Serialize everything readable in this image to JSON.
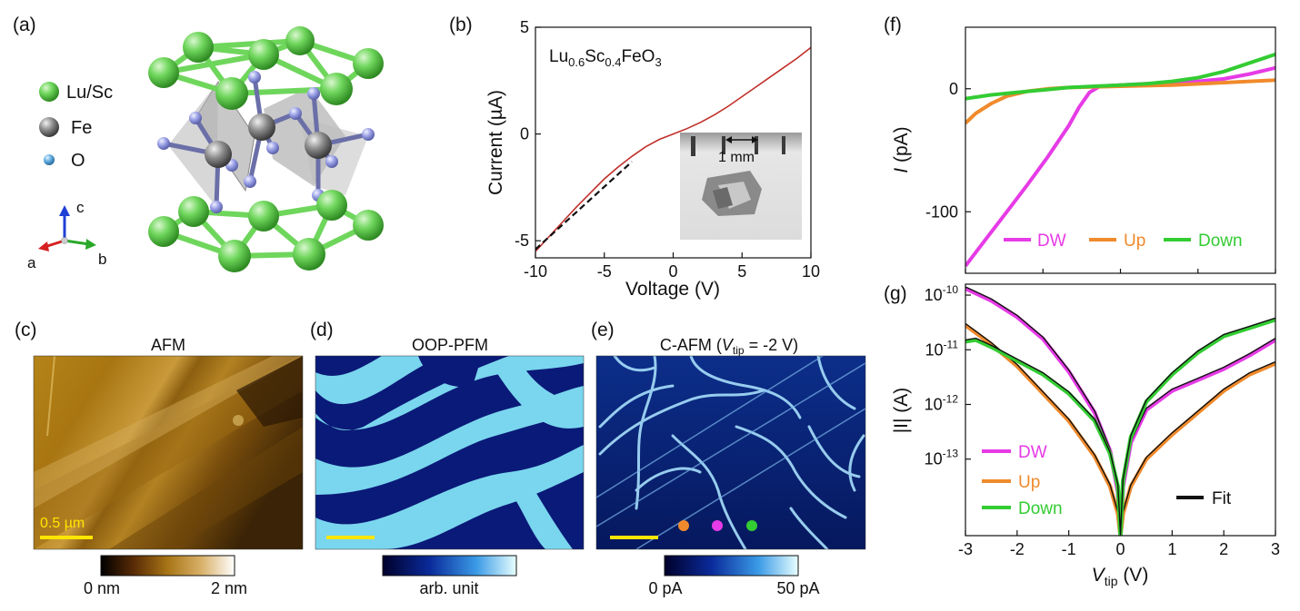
{
  "panels": {
    "a": {
      "letter": "(a)",
      "legend": [
        {
          "label": "Lu/Sc",
          "color": "#66cc55"
        },
        {
          "label": "Fe",
          "color": "#8c8c8c"
        },
        {
          "label": "O",
          "color": "#5aa6d6"
        }
      ],
      "axes": {
        "a": "a",
        "b": "b",
        "c": "c"
      }
    },
    "b": {
      "letter": "(b)",
      "formula": {
        "p1": "Lu",
        "s1": "0.6",
        "p2": "Sc",
        "s2": "0.4",
        "p3": "FeO",
        "s3": "3"
      },
      "inset_scale": "1 mm"
    },
    "c": {
      "letter": "(c)",
      "title": "AFM",
      "scalebar": "0.5 µm",
      "cbar_min": "0 nm",
      "cbar_max": "2 nm"
    },
    "d": {
      "letter": "(d)",
      "title": "OOP-PFM",
      "cbar_label": "arb. unit"
    },
    "e": {
      "letter": "(e)",
      "title_pre": "C-AFM (",
      "title_v": "V",
      "title_sub": "tip",
      "title_post": " = -2 V)",
      "cbar_min": "0 pA",
      "cbar_max": "50 pA",
      "markers": [
        {
          "color": "#f08a2c"
        },
        {
          "color": "#e63be6"
        },
        {
          "color": "#33cc33"
        }
      ]
    },
    "f": {
      "letter": "(f)"
    },
    "g": {
      "letter": "(g)"
    }
  },
  "chart_data": [
    {
      "id": "b",
      "type": "line",
      "xlabel": "Voltage (V)",
      "ylabel": "Current (µA)",
      "xlim": [
        -10,
        10
      ],
      "ylim": [
        -5.8,
        5
      ],
      "xticks": [
        -10,
        -5,
        0,
        5,
        10
      ],
      "yticks": [
        -5,
        0,
        5
      ],
      "series": [
        {
          "color": "#c0302a",
          "dash": false,
          "x": [
            -10,
            -9,
            -8,
            -7,
            -6,
            -5,
            -4,
            -3,
            -2,
            -1,
            0,
            1,
            2,
            3,
            4,
            5,
            6,
            7,
            8,
            9,
            10
          ],
          "y": [
            -5.5,
            -4.8,
            -4.1,
            -3.4,
            -2.75,
            -2.1,
            -1.55,
            -1.05,
            -0.6,
            -0.25,
            0.0,
            0.25,
            0.55,
            0.9,
            1.3,
            1.75,
            2.2,
            2.65,
            3.1,
            3.55,
            4.05
          ]
        },
        {
          "color": "#111111",
          "dash": true,
          "x": [
            -10,
            -3
          ],
          "y": [
            -5.4,
            -1.3
          ]
        }
      ]
    },
    {
      "id": "f",
      "type": "line",
      "xlabel": "",
      "ylabel": "I (pA)",
      "xlim": [
        -3,
        3
      ],
      "ylim": [
        -150,
        50
      ],
      "xticks": [],
      "yticks": [
        -100,
        0
      ],
      "legend": [
        "DW",
        "Up",
        "Down"
      ],
      "series": [
        {
          "name": "DW",
          "color": "#e63be6",
          "x": [
            -3,
            -2.6,
            -2.2,
            -1.8,
            -1.4,
            -1.0,
            -0.8,
            -0.6,
            -0.4,
            0,
            0.5,
            1.0,
            1.5,
            2.0,
            2.5,
            3.0
          ],
          "y": [
            -144,
            -122,
            -100,
            -78,
            -55,
            -30,
            -15,
            -3,
            2,
            3,
            4,
            5,
            6,
            8,
            12,
            17
          ]
        },
        {
          "name": "Up",
          "color": "#f08a2c",
          "x": [
            -3,
            -2.8,
            -2.5,
            -2.2,
            -1.8,
            -1.4,
            -1.0,
            0,
            1.0,
            2.0,
            3.0
          ],
          "y": [
            -28,
            -20,
            -12,
            -6,
            -2,
            0,
            1,
            2,
            3,
            5,
            7
          ]
        },
        {
          "name": "Down",
          "color": "#33cc33",
          "x": [
            -3,
            -2.5,
            -2.0,
            -1.5,
            -1.0,
            -0.5,
            0,
            0.5,
            1.0,
            1.5,
            2.0,
            2.5,
            3.0
          ],
          "y": [
            -8,
            -5,
            -3,
            -1,
            1,
            2,
            3,
            4,
            6,
            9,
            14,
            21,
            28
          ]
        }
      ]
    },
    {
      "id": "g",
      "type": "line",
      "scale": "log",
      "xlabel_v": "V",
      "xlabel_sub": "tip",
      "xlabel_unit": " (V)",
      "ylabel": "|I| (A)",
      "xlim": [
        -3,
        3
      ],
      "ylim_exp": [
        -14.4,
        -9.8
      ],
      "xticks": [
        -3,
        -2,
        -1,
        0,
        1,
        2,
        3
      ],
      "yticks_exp": [
        -13,
        -12,
        -11,
        -10
      ],
      "legend": [
        "DW",
        "Up",
        "Down",
        "Fit"
      ],
      "series": [
        {
          "name": "DW",
          "color": "#e63be6",
          "x": [
            -3,
            -2.5,
            -2.0,
            -1.5,
            -1.0,
            -0.5,
            -0.2,
            -0.05,
            0,
            0.05,
            0.2,
            0.5,
            1.0,
            1.5,
            2.0,
            2.5,
            3.0
          ],
          "yexp": [
            -9.88,
            -10.1,
            -10.4,
            -10.8,
            -11.4,
            -12.15,
            -12.85,
            -13.6,
            -14.4,
            -13.5,
            -12.7,
            -12.1,
            -11.75,
            -11.55,
            -11.35,
            -11.1,
            -10.82
          ]
        },
        {
          "name": "Up",
          "color": "#f08a2c",
          "x": [
            -3,
            -2.5,
            -2.0,
            -1.5,
            -1.0,
            -0.5,
            -0.2,
            -0.05,
            0,
            0.05,
            0.2,
            0.5,
            1.0,
            1.5,
            2.0,
            2.5,
            3.0
          ],
          "yexp": [
            -10.55,
            -10.9,
            -11.3,
            -11.8,
            -12.3,
            -12.95,
            -13.5,
            -14.0,
            -14.4,
            -14.0,
            -13.5,
            -13.0,
            -12.55,
            -12.15,
            -11.75,
            -11.45,
            -11.25
          ]
        },
        {
          "name": "Down",
          "color": "#33cc33",
          "x": [
            -3,
            -2.8,
            -2.5,
            -2.0,
            -1.5,
            -1.0,
            -0.5,
            -0.2,
            -0.05,
            0,
            0.05,
            0.2,
            0.5,
            1.0,
            1.5,
            2.0,
            2.5,
            3.0
          ],
          "yexp": [
            -10.85,
            -10.82,
            -10.95,
            -11.2,
            -11.45,
            -11.8,
            -12.3,
            -12.9,
            -13.5,
            -14.4,
            -13.4,
            -12.6,
            -11.95,
            -11.45,
            -11.05,
            -10.75,
            -10.6,
            -10.45
          ]
        }
      ]
    }
  ]
}
